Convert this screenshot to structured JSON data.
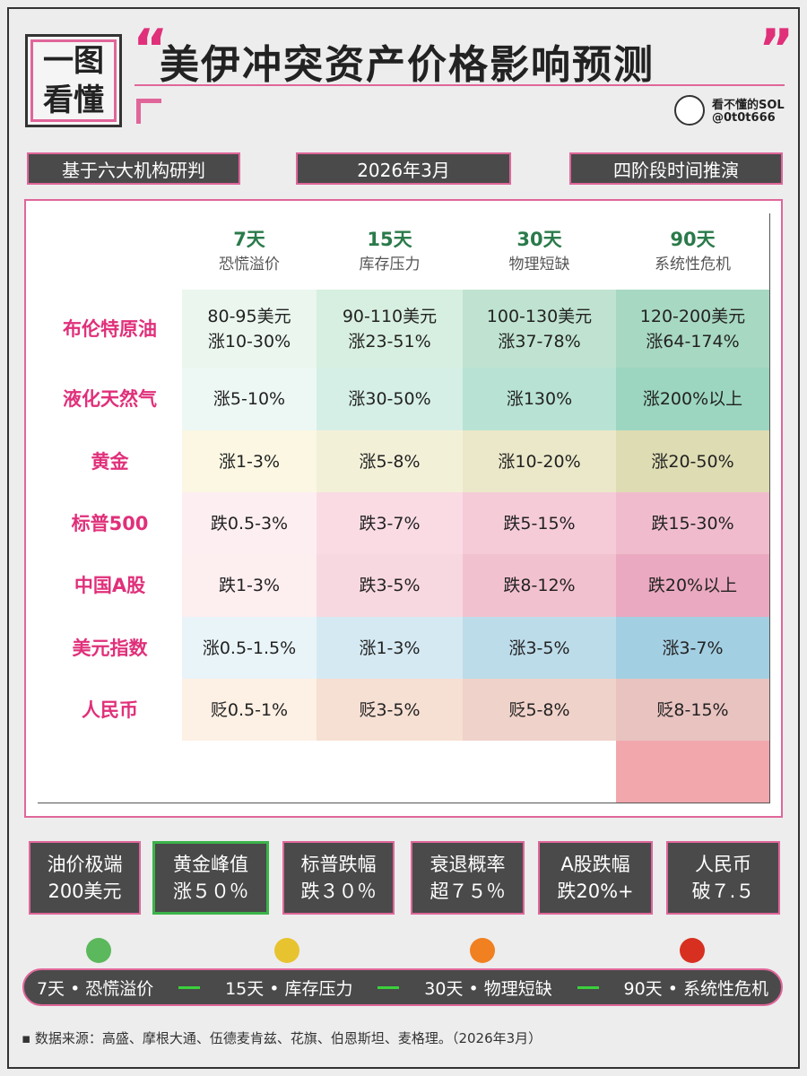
{
  "header": {
    "badge": [
      "一图",
      "看懂"
    ],
    "open_quote": "“",
    "title": "美伊冲突资产价格影响预测",
    "close_quote": "”",
    "author": {
      "name": "看不懂的SOL",
      "handle": "@0t0t666"
    }
  },
  "tags": [
    "基于六大机构研判",
    "2026年3月",
    "四阶段时间推演"
  ],
  "table": {
    "columns": [
      {
        "days": "7天",
        "phase": "恐慌溢价"
      },
      {
        "days": "15天",
        "phase": "库存压力"
      },
      {
        "days": "30天",
        "phase": "物理短缺"
      },
      {
        "days": "90天",
        "phase": "系统性危机"
      }
    ],
    "rows": [
      {
        "name": "布伦特原油",
        "cells": [
          [
            "80-95美元",
            "涨10-30%"
          ],
          [
            "90-110美元",
            "涨23-51%"
          ],
          [
            "100-130美元",
            "涨37-78%"
          ],
          [
            "120-200美元",
            "涨64-174%"
          ]
        ]
      },
      {
        "name": "液化天然气",
        "cells": [
          [
            "涨5-10%"
          ],
          [
            "涨30-50%"
          ],
          [
            "涨130%"
          ],
          [
            "涨200%以上"
          ]
        ]
      },
      {
        "name": "黄金",
        "cells": [
          [
            "涨1-3%"
          ],
          [
            "涨5-8%"
          ],
          [
            "涨10-20%"
          ],
          [
            "涨20-50%"
          ]
        ]
      },
      {
        "name": "标普500",
        "cells": [
          [
            "跌0.5-3%"
          ],
          [
            "跌3-7%"
          ],
          [
            "跌5-15%"
          ],
          [
            "跌15-30%"
          ]
        ]
      },
      {
        "name": "中国A股",
        "cells": [
          [
            "跌1-3%"
          ],
          [
            "跌3-5%"
          ],
          [
            "跌8-12%"
          ],
          [
            "跌20%以上"
          ]
        ]
      },
      {
        "name": "美元指数",
        "cells": [
          [
            "涨0.5-1.5%"
          ],
          [
            "涨1-3%"
          ],
          [
            "涨3-5%"
          ],
          [
            "涨3-7%"
          ]
        ]
      },
      {
        "name": "人民币",
        "cells": [
          [
            "贬0.5-1%"
          ],
          [
            "贬3-5%"
          ],
          [
            "贬5-8%"
          ],
          [
            "贬8-15%"
          ]
        ]
      }
    ]
  },
  "stats": [
    [
      "油价极端",
      "200美元"
    ],
    [
      "黄金峰值",
      "涨５０％"
    ],
    [
      "标普跌幅",
      "跌３０％"
    ],
    [
      "衰退概率",
      "超７５％"
    ],
    [
      "A股跌幅",
      "跌20%+"
    ],
    [
      "人民币",
      "破７.５"
    ]
  ],
  "timeline": [
    "7天 • 恐慌溢价",
    "15天 • 库存压力",
    "30天 • 物理短缺",
    "90天 • 系统性危机"
  ],
  "footer": "▪ 数据来源：高盛、摩根大通、伍德麦肯兹、花旗、伯恩斯坦、麦格理。（2026年3月）"
}
